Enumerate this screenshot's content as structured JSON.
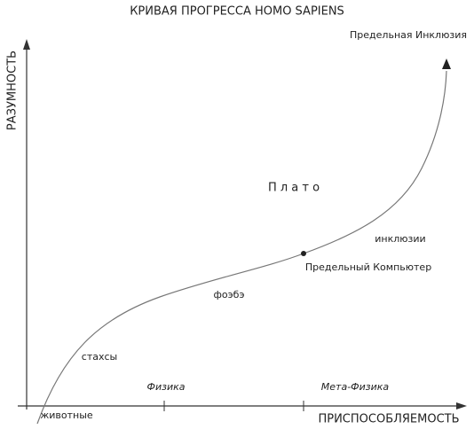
{
  "title": "КРИВАЯ ПРОГРЕССА HOMO SAPIENS",
  "axes": {
    "y_label": "РАЗУМНОСТЬ",
    "x_label": "ПРИСПОСОБЛЯЕМОСТЬ"
  },
  "x_regions": [
    "Физика",
    "Мета-Физика"
  ],
  "labels": {
    "top": "Предельная Инклюзия",
    "plateau": "П л а т о",
    "inclusions": "инклюзии",
    "computer": "Предельный Компьютер",
    "phoebe": "фоэбэ",
    "stakhsy": "стахсы",
    "animals": "животные"
  }
}
